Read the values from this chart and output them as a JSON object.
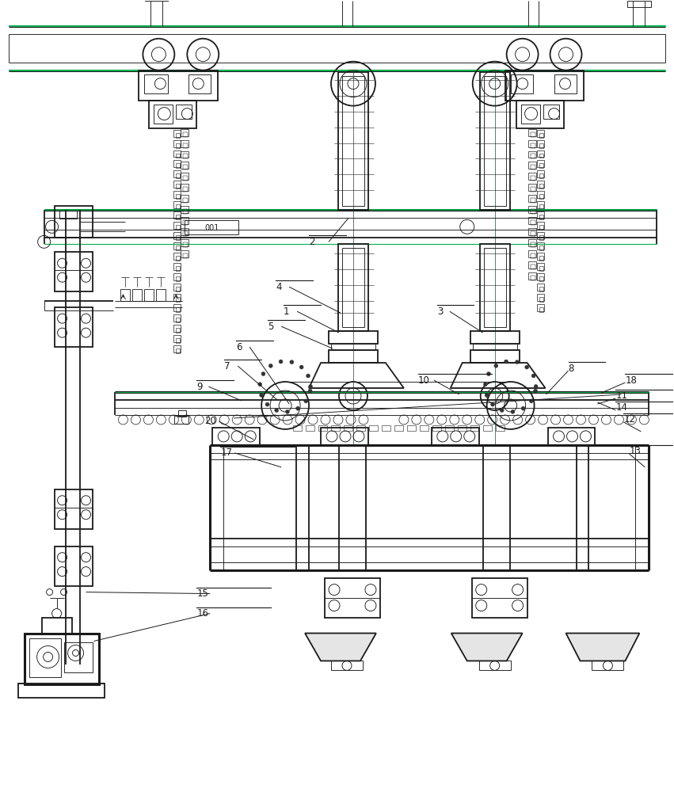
{
  "bg_color": "#ffffff",
  "lc": "#1a1a1a",
  "gc": "#00b050",
  "figsize": [
    8.51,
    10.0
  ],
  "dpi": 100,
  "lw_thick": 2.2,
  "lw_med": 1.3,
  "lw_thin": 0.65,
  "lw_vt": 0.4
}
